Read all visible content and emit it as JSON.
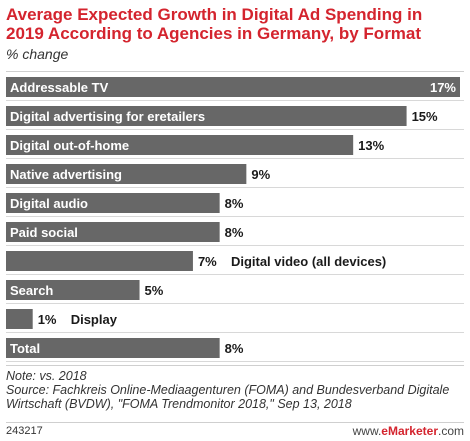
{
  "header": {
    "title": "Average Expected Growth in Digital Ad Spending in 2019 According to Agencies in Germany, by Format",
    "subtitle": "% change"
  },
  "chart_data": {
    "type": "bar",
    "orientation": "horizontal",
    "title": "Average Expected Growth in Digital Ad Spending in 2019 According to Agencies in Germany, by Format",
    "subtitle": "% change",
    "categories": [
      "Addressable TV",
      "Digital advertising for eretailers",
      "Digital out-of-home",
      "Native advertising",
      "Digital audio",
      "Paid social",
      "Digital video (all devices)",
      "Search",
      "Display",
      "Total"
    ],
    "values": [
      17,
      15,
      13,
      9,
      8,
      8,
      7,
      5,
      1,
      8
    ],
    "value_labels": [
      "17%",
      "15%",
      "13%",
      "9%",
      "8%",
      "8%",
      "7%",
      "5%",
      "1%",
      "8%"
    ],
    "xlim": [
      0,
      17
    ],
    "bar_color": "#676767",
    "grid": false,
    "legend": "none"
  },
  "footer": {
    "note": "Note: vs. 2018",
    "source": "Source: Fachkreis Online-Mediaagenturen (FOMA) and Bundesverband Digitale Wirtschaft (BVDW), \"FOMA Trendmonitor 2018,\" Sep 13, 2018",
    "chart_id": "243217",
    "brand_prefix": "www.",
    "brand_name": "eMarketer",
    "brand_suffix": ".com"
  },
  "colors": {
    "title": "#d4242e",
    "bar": "#676767"
  }
}
